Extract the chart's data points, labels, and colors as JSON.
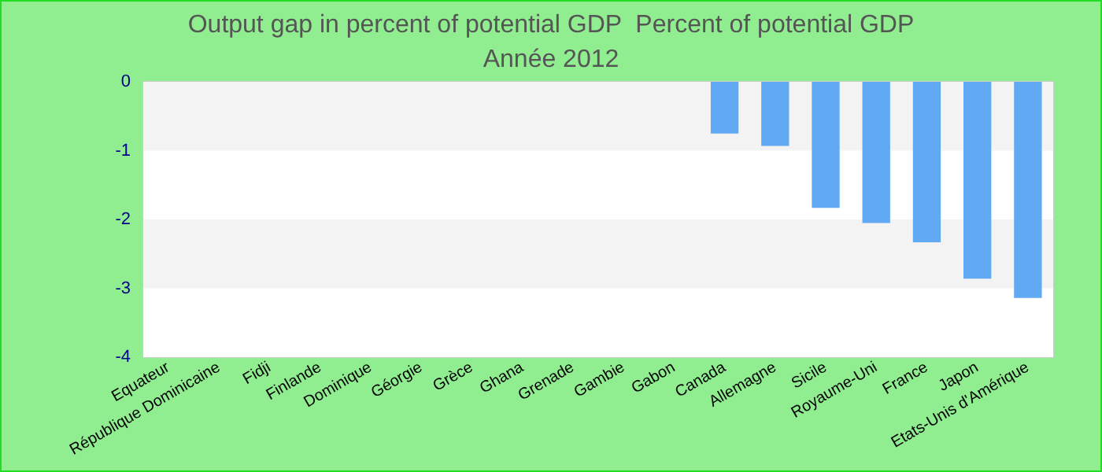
{
  "chart_data": {
    "type": "bar",
    "title": "Output gap in percent of potential GDP  Percent of potential GDP",
    "subtitle": "Année 2012",
    "categories": [
      "Equateur",
      "République Dominicaine",
      "Fidji",
      "Finlande",
      "Dominique",
      "Géorgie",
      "Grèce",
      "Ghana",
      "Grenade",
      "Gambie",
      "Gabon",
      "Canada",
      "Allemagne",
      "Sicile",
      "Royaume-Uni",
      "France",
      "Japon",
      "Etats-Unis d'Amérique"
    ],
    "values": [
      null,
      null,
      null,
      null,
      null,
      null,
      null,
      null,
      null,
      null,
      null,
      -0.75,
      -0.93,
      -1.83,
      -2.05,
      -2.33,
      -2.86,
      -3.14
    ],
    "color": "#62a9f3",
    "ylim": [
      -4,
      0
    ],
    "yticks": [
      0,
      -1,
      -2,
      -3,
      -4
    ]
  }
}
